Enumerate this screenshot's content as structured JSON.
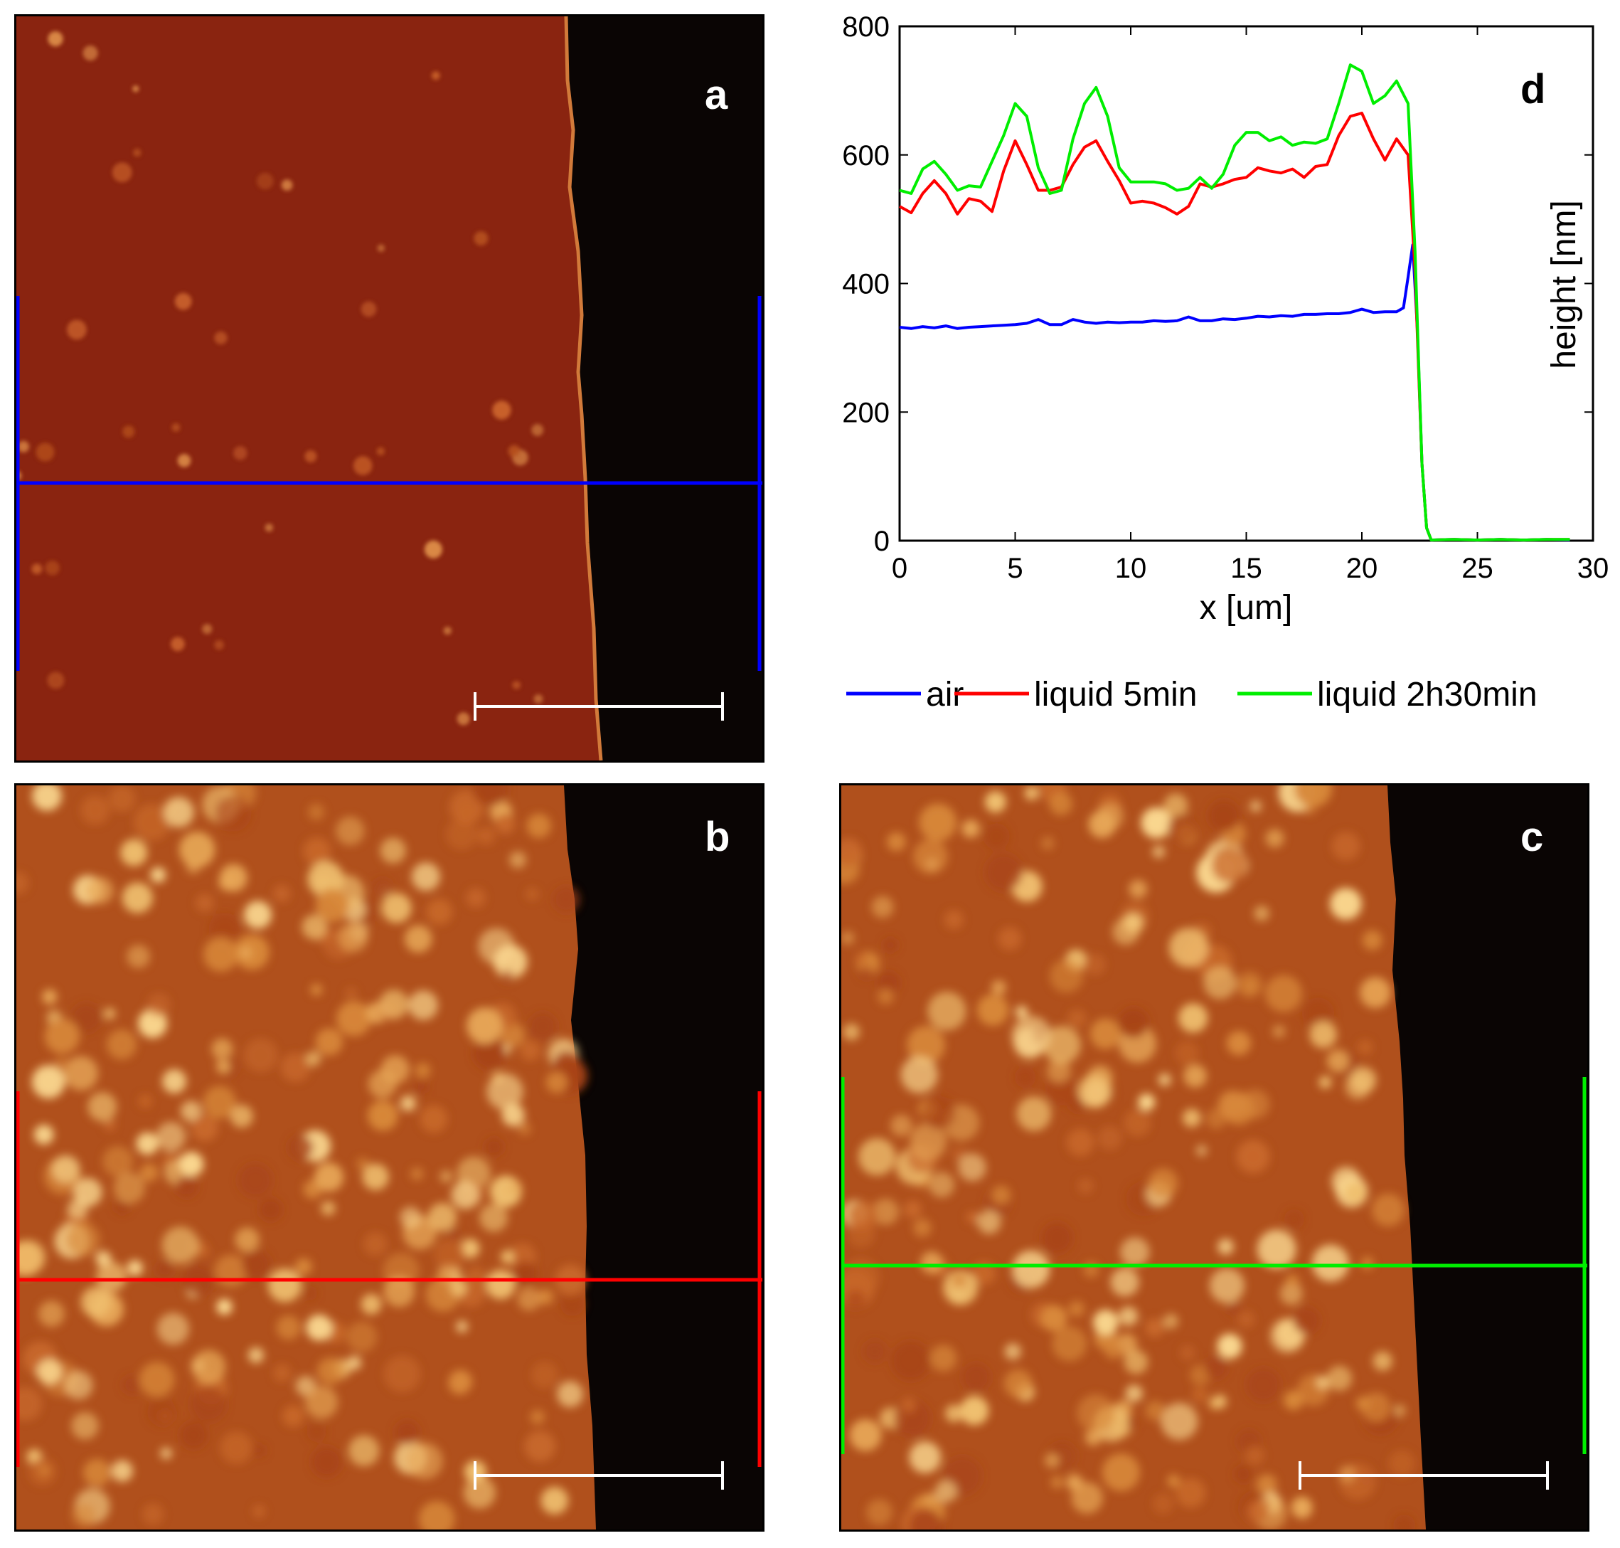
{
  "panels": {
    "a": {
      "letter": "a",
      "profile_color": "#0000ff"
    },
    "b": {
      "letter": "b",
      "profile_color": "#ff0000"
    },
    "c": {
      "letter": "c",
      "profile_color": "#00dd00"
    }
  },
  "chart_data": {
    "type": "line",
    "panel_letter": "d",
    "xlabel": "x [um]",
    "ylabel": "height [nm]",
    "xlim": [
      0,
      30
    ],
    "ylim": [
      0,
      800
    ],
    "xticks": [
      0,
      5,
      10,
      15,
      20,
      25,
      30
    ],
    "yticks": [
      0,
      200,
      400,
      600,
      800
    ],
    "grid": false,
    "legend_position": "bottom",
    "series": [
      {
        "name": "air",
        "color": "#0000ff",
        "x": [
          0,
          0.5,
          1,
          1.5,
          2,
          2.5,
          3,
          3.5,
          4,
          4.5,
          5,
          5.5,
          6,
          6.5,
          7,
          7.5,
          8,
          8.5,
          9,
          9.5,
          10,
          10.5,
          11,
          11.5,
          12,
          12.5,
          13,
          13.5,
          14,
          14.5,
          15,
          15.5,
          16,
          16.5,
          17,
          17.5,
          18,
          18.5,
          19,
          19.5,
          20,
          20.5,
          21,
          21.5,
          21.8,
          22.0,
          22.2,
          22.4,
          22.6,
          22.8,
          23.0,
          24,
          25,
          26,
          27,
          28,
          29
        ],
        "y": [
          332,
          330,
          333,
          331,
          334,
          330,
          332,
          333,
          334,
          335,
          336,
          338,
          344,
          336,
          336,
          344,
          340,
          338,
          340,
          339,
          340,
          340,
          342,
          341,
          342,
          348,
          342,
          342,
          345,
          344,
          346,
          349,
          348,
          350,
          349,
          352,
          352,
          353,
          353,
          355,
          360,
          355,
          356,
          356,
          362,
          410,
          460,
          330,
          120,
          20,
          1,
          2,
          1,
          2,
          1,
          2,
          1
        ]
      },
      {
        "name": "liquid 5min",
        "color": "#ff0000",
        "x": [
          0,
          0.5,
          1,
          1.5,
          2,
          2.5,
          3,
          3.5,
          4,
          4.5,
          5,
          5.5,
          6,
          6.5,
          7,
          7.5,
          8,
          8.5,
          9,
          9.5,
          10,
          10.5,
          11,
          11.5,
          12,
          12.5,
          13,
          13.5,
          14,
          14.5,
          15,
          15.5,
          16,
          16.5,
          17,
          17.5,
          18,
          18.5,
          19,
          19.5,
          20,
          20.5,
          21,
          21.5,
          22.0,
          22.3,
          22.6,
          22.8,
          23.0,
          24,
          25,
          26,
          27,
          28,
          29
        ],
        "y": [
          520,
          510,
          540,
          560,
          540,
          508,
          532,
          528,
          512,
          575,
          622,
          585,
          545,
          545,
          550,
          585,
          612,
          622,
          590,
          560,
          525,
          528,
          525,
          518,
          508,
          520,
          555,
          550,
          555,
          562,
          565,
          580,
          575,
          572,
          578,
          565,
          582,
          585,
          630,
          660,
          665,
          625,
          592,
          625,
          600,
          420,
          120,
          20,
          1,
          2,
          1,
          2,
          1,
          2,
          2
        ]
      },
      {
        "name": "liquid 2h30min",
        "color": "#00ee00",
        "x": [
          0,
          0.5,
          1,
          1.5,
          2,
          2.5,
          3,
          3.5,
          4,
          4.5,
          5,
          5.5,
          6,
          6.5,
          7,
          7.5,
          8,
          8.5,
          9,
          9.5,
          10,
          10.5,
          11,
          11.5,
          12,
          12.5,
          13,
          13.5,
          14,
          14.5,
          15,
          15.5,
          16,
          16.5,
          17,
          17.5,
          18,
          18.5,
          19,
          19.5,
          20,
          20.5,
          21,
          21.5,
          22.0,
          22.3,
          22.6,
          22.8,
          23.0,
          24,
          25,
          26,
          27,
          28,
          29
        ],
        "y": [
          545,
          540,
          578,
          590,
          570,
          545,
          552,
          550,
          590,
          630,
          680,
          660,
          580,
          540,
          545,
          625,
          680,
          705,
          660,
          580,
          558,
          558,
          558,
          555,
          545,
          548,
          565,
          548,
          570,
          615,
          635,
          635,
          622,
          628,
          615,
          620,
          618,
          625,
          680,
          740,
          730,
          680,
          692,
          715,
          680,
          450,
          120,
          20,
          1,
          2,
          1,
          2,
          1,
          2,
          2
        ]
      }
    ]
  }
}
